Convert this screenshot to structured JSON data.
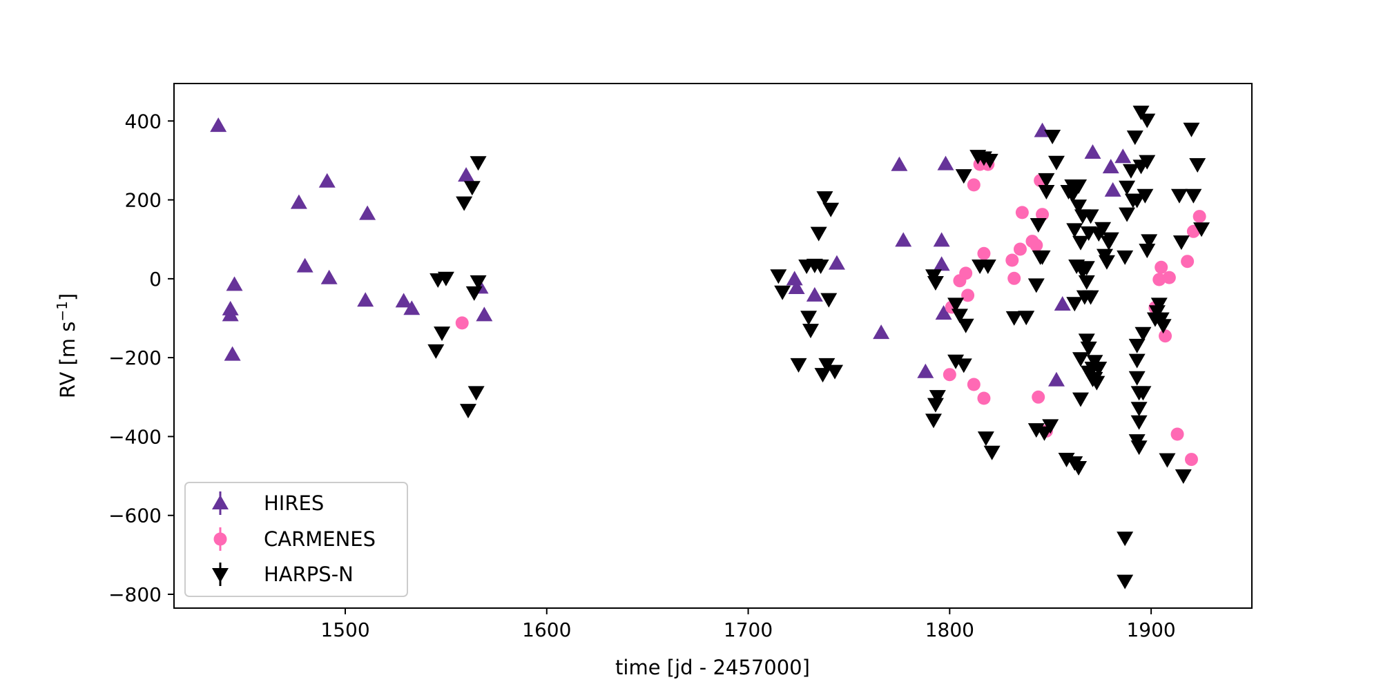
{
  "chart_data": {
    "type": "scatter",
    "xlabel": "time [jd - 2457000]",
    "ylabel_main": "RV [m s",
    "ylabel_sup": "−1",
    "ylabel_close": "]",
    "xlim": [
      1415,
      1950
    ],
    "ylim": [
      -835,
      495
    ],
    "x_ticks": [
      1500,
      1600,
      1700,
      1800,
      1900
    ],
    "y_ticks": [
      -800,
      -600,
      -400,
      -200,
      0,
      200,
      400
    ],
    "x_tick_labels": [
      "1500",
      "1600",
      "1700",
      "1800",
      "1900"
    ],
    "y_tick_labels": [
      "−800",
      "−600",
      "−400",
      "−200",
      "0",
      "200",
      "400"
    ],
    "grid": false,
    "legend_position": "lower-left",
    "series": [
      {
        "name": "HIRES",
        "marker": "triangle-up",
        "color": "#663399",
        "points": [
          [
            1437,
            388
          ],
          [
            1443,
            -77
          ],
          [
            1443,
            -92
          ],
          [
            1444,
            -192
          ],
          [
            1445,
            -15
          ],
          [
            1477,
            193
          ],
          [
            1480,
            32
          ],
          [
            1491,
            247
          ],
          [
            1492,
            2
          ],
          [
            1510,
            -55
          ],
          [
            1511,
            165
          ],
          [
            1529,
            -57
          ],
          [
            1533,
            -76
          ],
          [
            1560,
            262
          ],
          [
            1567,
            -22
          ],
          [
            1569,
            -92
          ],
          [
            1723,
            -1
          ],
          [
            1724,
            -23
          ],
          [
            1733,
            -42
          ],
          [
            1744,
            39
          ],
          [
            1766,
            -137
          ],
          [
            1775,
            289
          ],
          [
            1777,
            97
          ],
          [
            1788,
            -236
          ],
          [
            1796,
            36
          ],
          [
            1796,
            97
          ],
          [
            1797,
            -88
          ],
          [
            1798,
            291
          ],
          [
            1846,
            375
          ],
          [
            1853,
            -257
          ],
          [
            1856,
            -65
          ],
          [
            1871,
            320
          ],
          [
            1880,
            283
          ],
          [
            1881,
            224
          ],
          [
            1886,
            309
          ]
        ]
      },
      {
        "name": "CARMENES",
        "marker": "circle",
        "color": "#ff69b4",
        "points": [
          [
            1558,
            -112
          ],
          [
            1800,
            -243
          ],
          [
            1801,
            -72
          ],
          [
            1805,
            -5
          ],
          [
            1808,
            14
          ],
          [
            1809,
            -42
          ],
          [
            1812,
            -268
          ],
          [
            1812,
            238
          ],
          [
            1815,
            290
          ],
          [
            1817,
            64
          ],
          [
            1817,
            -303
          ],
          [
            1819,
            290
          ],
          [
            1831,
            47
          ],
          [
            1832,
            1
          ],
          [
            1835,
            75
          ],
          [
            1836,
            168
          ],
          [
            1841,
            95
          ],
          [
            1843,
            85
          ],
          [
            1844,
            -300
          ],
          [
            1845,
            249
          ],
          [
            1846,
            163
          ],
          [
            1848,
            -386
          ],
          [
            1902,
            -73
          ],
          [
            1904,
            -2
          ],
          [
            1905,
            29
          ],
          [
            1907,
            -145
          ],
          [
            1909,
            3
          ],
          [
            1913,
            -394
          ],
          [
            1918,
            44
          ],
          [
            1920,
            -458
          ],
          [
            1921,
            120
          ],
          [
            1924,
            158
          ]
        ]
      },
      {
        "name": "HARPS-N",
        "marker": "triangle-down",
        "color": "#000000",
        "points": [
          [
            1545,
            -182
          ],
          [
            1546,
            -2
          ],
          [
            1548,
            -137
          ],
          [
            1550,
            2
          ],
          [
            1559,
            193
          ],
          [
            1561,
            -333
          ],
          [
            1563,
            232
          ],
          [
            1564,
            -35
          ],
          [
            1565,
            -288
          ],
          [
            1566,
            295
          ],
          [
            1566,
            -7
          ],
          [
            1715,
            8
          ],
          [
            1717,
            -33
          ],
          [
            1725,
            -217
          ],
          [
            1729,
            33
          ],
          [
            1730,
            -97
          ],
          [
            1731,
            -130
          ],
          [
            1733,
            35
          ],
          [
            1735,
            116
          ],
          [
            1736,
            33
          ],
          [
            1737,
            -242
          ],
          [
            1738,
            206
          ],
          [
            1739,
            -217
          ],
          [
            1740,
            -52
          ],
          [
            1741,
            177
          ],
          [
            1743,
            -234
          ],
          [
            1792,
            -358
          ],
          [
            1792,
            8
          ],
          [
            1793,
            -9
          ],
          [
            1793,
            -318
          ],
          [
            1794,
            -298
          ],
          [
            1803,
            -64
          ],
          [
            1803,
            -208
          ],
          [
            1805,
            -92
          ],
          [
            1807,
            -218
          ],
          [
            1807,
            262
          ],
          [
            1808,
            -117
          ],
          [
            1814,
            311
          ],
          [
            1815,
            33
          ],
          [
            1817,
            307
          ],
          [
            1818,
            -403
          ],
          [
            1819,
            33
          ],
          [
            1820,
            301
          ],
          [
            1821,
            -439
          ],
          [
            1832,
            -98
          ],
          [
            1838,
            -97
          ],
          [
            1843,
            -15
          ],
          [
            1843,
            -382
          ],
          [
            1844,
            138
          ],
          [
            1845,
            56
          ],
          [
            1846,
            56
          ],
          [
            1847,
            -390
          ],
          [
            1848,
            252
          ],
          [
            1848,
            222
          ],
          [
            1850,
            -372
          ],
          [
            1851,
            362
          ],
          [
            1853,
            296
          ],
          [
            1858,
            -457
          ],
          [
            1859,
            222
          ],
          [
            1861,
            236
          ],
          [
            1861,
            213
          ],
          [
            1862,
            125
          ],
          [
            1862,
            -466
          ],
          [
            1862,
            -62
          ],
          [
            1863,
            33
          ],
          [
            1864,
            236
          ],
          [
            1864,
            185
          ],
          [
            1864,
            -478
          ],
          [
            1865,
            -202
          ],
          [
            1865,
            -304
          ],
          [
            1865,
            93
          ],
          [
            1866,
            160
          ],
          [
            1866,
            20
          ],
          [
            1867,
            -45
          ],
          [
            1868,
            -7
          ],
          [
            1868,
            29
          ],
          [
            1868,
            -155
          ],
          [
            1869,
            -175
          ],
          [
            1869,
            -236
          ],
          [
            1869,
            117
          ],
          [
            1870,
            160
          ],
          [
            1870,
            -45
          ],
          [
            1871,
            -226
          ],
          [
            1871,
            -254
          ],
          [
            1872,
            -209
          ],
          [
            1872,
            -252
          ],
          [
            1873,
            -262
          ],
          [
            1874,
            115
          ],
          [
            1874,
            -226
          ],
          [
            1876,
            128
          ],
          [
            1877,
            60
          ],
          [
            1878,
            44
          ],
          [
            1879,
            93
          ],
          [
            1880,
            102
          ],
          [
            1887,
            -766
          ],
          [
            1887,
            -657
          ],
          [
            1887,
            56
          ],
          [
            1888,
            233
          ],
          [
            1888,
            165
          ],
          [
            1890,
            275
          ],
          [
            1891,
            200
          ],
          [
            1892,
            360
          ],
          [
            1893,
            200
          ],
          [
            1893,
            -168
          ],
          [
            1893,
            -206
          ],
          [
            1893,
            -250
          ],
          [
            1893,
            -410
          ],
          [
            1894,
            -288
          ],
          [
            1894,
            -328
          ],
          [
            1894,
            -362
          ],
          [
            1894,
            -426
          ],
          [
            1895,
            423
          ],
          [
            1895,
            286
          ],
          [
            1896,
            -138
          ],
          [
            1896,
            -288
          ],
          [
            1897,
            212
          ],
          [
            1898,
            298
          ],
          [
            1898,
            403
          ],
          [
            1898,
            73
          ],
          [
            1899,
            97
          ],
          [
            1902,
            -101
          ],
          [
            1903,
            -83
          ],
          [
            1904,
            -64
          ],
          [
            1905,
            -101
          ],
          [
            1906,
            -118
          ],
          [
            1908,
            -458
          ],
          [
            1914,
            212
          ],
          [
            1915,
            94
          ],
          [
            1916,
            -499
          ],
          [
            1920,
            380
          ],
          [
            1921,
            212
          ],
          [
            1923,
            290
          ],
          [
            1925,
            127
          ]
        ]
      }
    ]
  }
}
